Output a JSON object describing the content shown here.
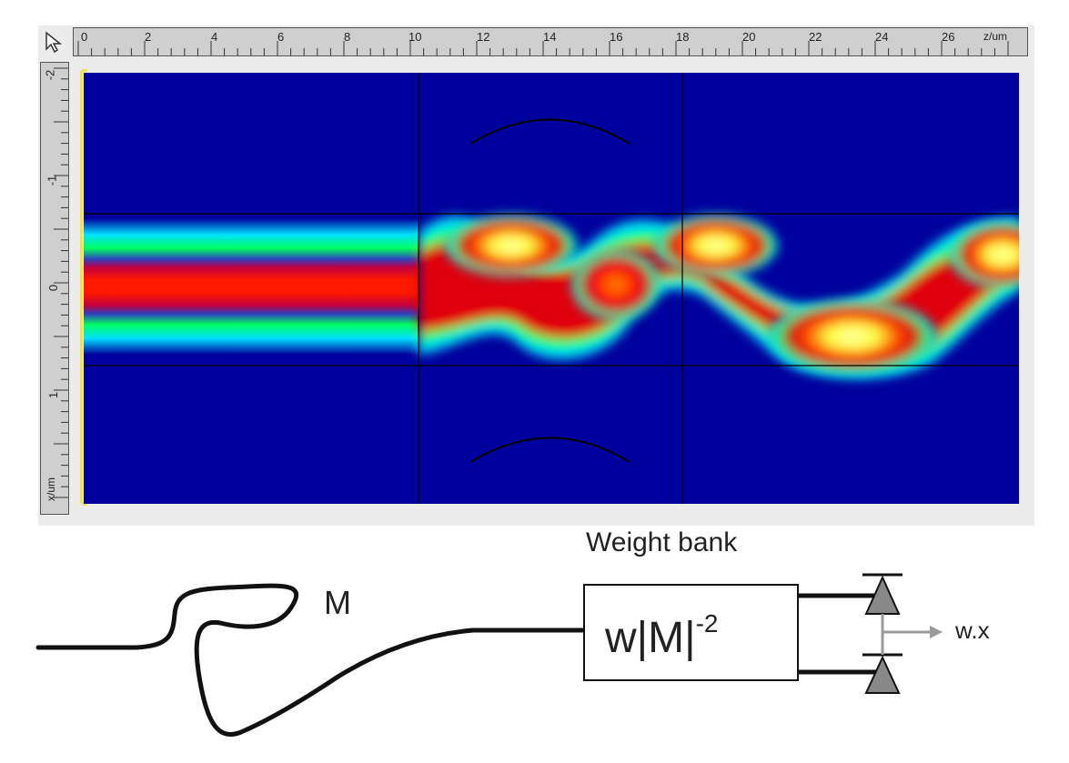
{
  "simulation": {
    "toolbar_icon": "pointer-arrow-icon",
    "z_ruler": {
      "ticks": [
        "0",
        "2",
        "4",
        "6",
        "8",
        "10",
        "12",
        "14",
        "16",
        "18",
        "20",
        "22",
        "24",
        "26"
      ],
      "unit_label": "z/um"
    },
    "x_ruler": {
      "ticks": [
        "-2",
        "-1",
        "0",
        "1"
      ],
      "unit_label": "x/um"
    },
    "colors": {
      "background": "#00009c",
      "cyan": "#00e0ff",
      "green": "#00ff60",
      "red": "#ff1800",
      "yellow": "#ffff60"
    }
  },
  "diagram": {
    "weight_bank_label": "Weight bank",
    "fiber_label": "M",
    "box_text_main": "w|M|",
    "box_text_exp": "-2",
    "output_label": "w.x"
  }
}
